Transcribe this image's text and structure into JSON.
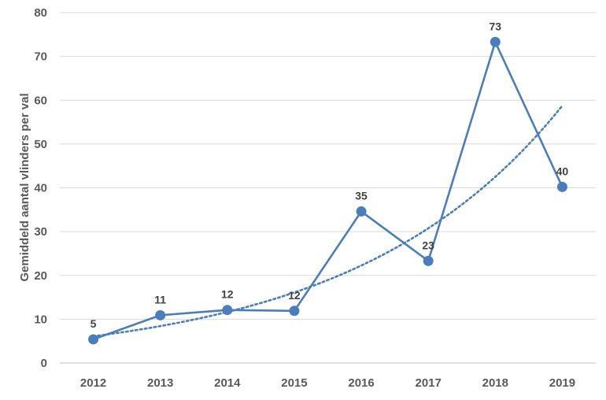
{
  "chart_data": {
    "type": "line",
    "title": "",
    "xlabel": "",
    "ylabel": "Gemiddeld aantal vlinders per val",
    "ylim": [
      0,
      80
    ],
    "y_ticks": [
      0,
      10,
      20,
      30,
      40,
      50,
      60,
      70,
      80
    ],
    "categories": [
      "2012",
      "2013",
      "2014",
      "2015",
      "2016",
      "2017",
      "2018",
      "2019"
    ],
    "series": [
      {
        "values": [
          5.4,
          10.9,
          12.1,
          11.9,
          34.6,
          23.3,
          73.3,
          40.2
        ],
        "data_labels": [
          "5",
          "11",
          "12",
          "12",
          "35",
          "23",
          "73",
          "40"
        ],
        "color": "#4a7ebb",
        "marker": "circle"
      }
    ],
    "trendline": {
      "type": "exponential",
      "style": "dotted",
      "color": "#4a7ebb",
      "start_value": 6.1,
      "growth_per_year": 1.382
    },
    "grid": true,
    "legend": "none"
  }
}
